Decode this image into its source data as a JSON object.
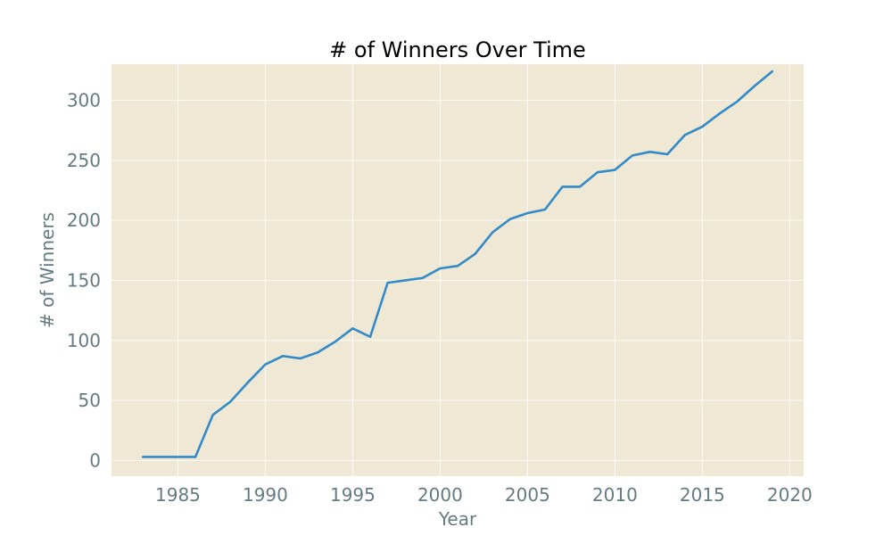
{
  "chart_data": {
    "type": "line",
    "title": "# of Winners Over Time",
    "xlabel": "Year",
    "ylabel": "# of Winners",
    "xlim": [
      1981.2,
      2020.8
    ],
    "ylim": [
      -13,
      330
    ],
    "xticks": [
      1985,
      1990,
      1995,
      2000,
      2005,
      2010,
      2015,
      2020
    ],
    "yticks": [
      0,
      50,
      100,
      150,
      200,
      250,
      300
    ],
    "grid": true,
    "series": [
      {
        "color": "#328ac9",
        "x": [
          1983,
          1984,
          1985,
          1986,
          1987,
          1988,
          1989,
          1990,
          1991,
          1992,
          1993,
          1994,
          1995,
          1996,
          1997,
          1998,
          1999,
          2000,
          2001,
          2002,
          2003,
          2004,
          2005,
          2006,
          2007,
          2008,
          2009,
          2010,
          2011,
          2012,
          2013,
          2014,
          2015,
          2016,
          2017,
          2018,
          2019
        ],
        "values": [
          3,
          3,
          3,
          3,
          38,
          49,
          65,
          80,
          87,
          85,
          90,
          99,
          110,
          103,
          148,
          150,
          152,
          160,
          162,
          172,
          190,
          201,
          206,
          209,
          228,
          228,
          240,
          242,
          254,
          257,
          255,
          271,
          278,
          289,
          299,
          312,
          324
        ]
      }
    ]
  }
}
